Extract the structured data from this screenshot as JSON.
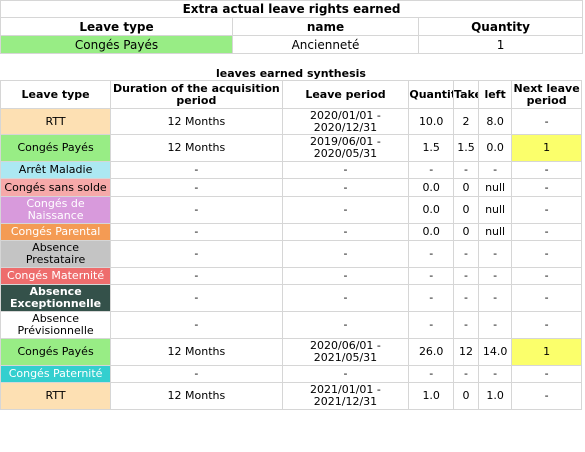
{
  "extra": {
    "title": "Extra actual leave rights earned",
    "headers": {
      "leave_type": "Leave type",
      "name": "name",
      "quantity": "Quantity"
    },
    "row": {
      "leave_type": "Congés Payés",
      "name": "Ancienneté",
      "quantity": "1"
    }
  },
  "synthesis": {
    "title": "leaves earned synthesis",
    "headers": {
      "leave_type": "Leave type",
      "duration": "Duration of the acquisition period",
      "leave_period": "Leave period",
      "quantity": "Quantity",
      "taken": "Taken",
      "left": "left",
      "next": "Next leave period"
    },
    "rows": [
      {
        "type": "RTT",
        "cls": "c-rtt",
        "duration": "12 Months",
        "period": "2020/01/01 - 2020/12/31",
        "quantity": "10.0",
        "taken": "2",
        "left": "8.0",
        "next": "-",
        "hl": false,
        "h": 26
      },
      {
        "type": "Congés Payés",
        "cls": "c-cp",
        "duration": "12 Months",
        "period": "2019/06/01 - 2020/05/31",
        "quantity": "1.5",
        "taken": "1.5",
        "left": "0.0",
        "next": "1",
        "hl": true,
        "h": 27
      },
      {
        "type": "Arrêt Maladie",
        "cls": "c-am",
        "duration": "-",
        "period": "-",
        "quantity": "-",
        "taken": "-",
        "left": "-",
        "next": "-",
        "hl": false,
        "h": 17
      },
      {
        "type": "Congés sans solde",
        "cls": "c-css",
        "duration": "-",
        "period": "-",
        "quantity": "0.0",
        "taken": "0",
        "left": "null",
        "next": "-",
        "hl": false,
        "h": 18
      },
      {
        "type": "Congés de Naissance",
        "cls": "c-cn",
        "duration": "-",
        "period": "-",
        "quantity": "0.0",
        "taken": "0",
        "left": "null",
        "next": "-",
        "hl": false,
        "h": 27
      },
      {
        "type": "Congés Parental",
        "cls": "c-cpar",
        "duration": "-",
        "period": "-",
        "quantity": "0.0",
        "taken": "0",
        "left": "null",
        "next": "-",
        "hl": false,
        "h": 17
      },
      {
        "type": "Absence Prestataire",
        "cls": "c-ap",
        "duration": "-",
        "period": "-",
        "quantity": "-",
        "taken": "-",
        "left": "-",
        "next": "-",
        "hl": false,
        "h": 27
      },
      {
        "type": "Congés Maternité",
        "cls": "c-cm",
        "duration": "-",
        "period": "-",
        "quantity": "-",
        "taken": "-",
        "left": "-",
        "next": "-",
        "hl": false,
        "h": 17
      },
      {
        "type": "Absence Exceptionnelle",
        "cls": "c-ae",
        "duration": "-",
        "period": "-",
        "quantity": "-",
        "taken": "-",
        "left": "-",
        "next": "-",
        "hl": false,
        "h": 27
      },
      {
        "type": "Absence Prévisionnelle",
        "cls": "c-apv",
        "duration": "-",
        "period": "-",
        "quantity": "-",
        "taken": "-",
        "left": "-",
        "next": "-",
        "hl": false,
        "h": 27
      },
      {
        "type": "Congés Payés",
        "cls": "c-cp",
        "duration": "12 Months",
        "period": "2020/06/01 - 2021/05/31",
        "quantity": "26.0",
        "taken": "12",
        "left": "14.0",
        "next": "1",
        "hl": true,
        "h": 27
      },
      {
        "type": "Congés Paternité",
        "cls": "c-cpat",
        "duration": "-",
        "period": "-",
        "quantity": "-",
        "taken": "-",
        "left": "-",
        "next": "-",
        "hl": false,
        "h": 17
      },
      {
        "type": "RTT",
        "cls": "c-rtt",
        "duration": "12 Months",
        "period": "2021/01/01 - 2021/12/31",
        "quantity": "1.0",
        "taken": "0",
        "left": "1.0",
        "next": "-",
        "hl": false,
        "h": 27
      }
    ]
  }
}
